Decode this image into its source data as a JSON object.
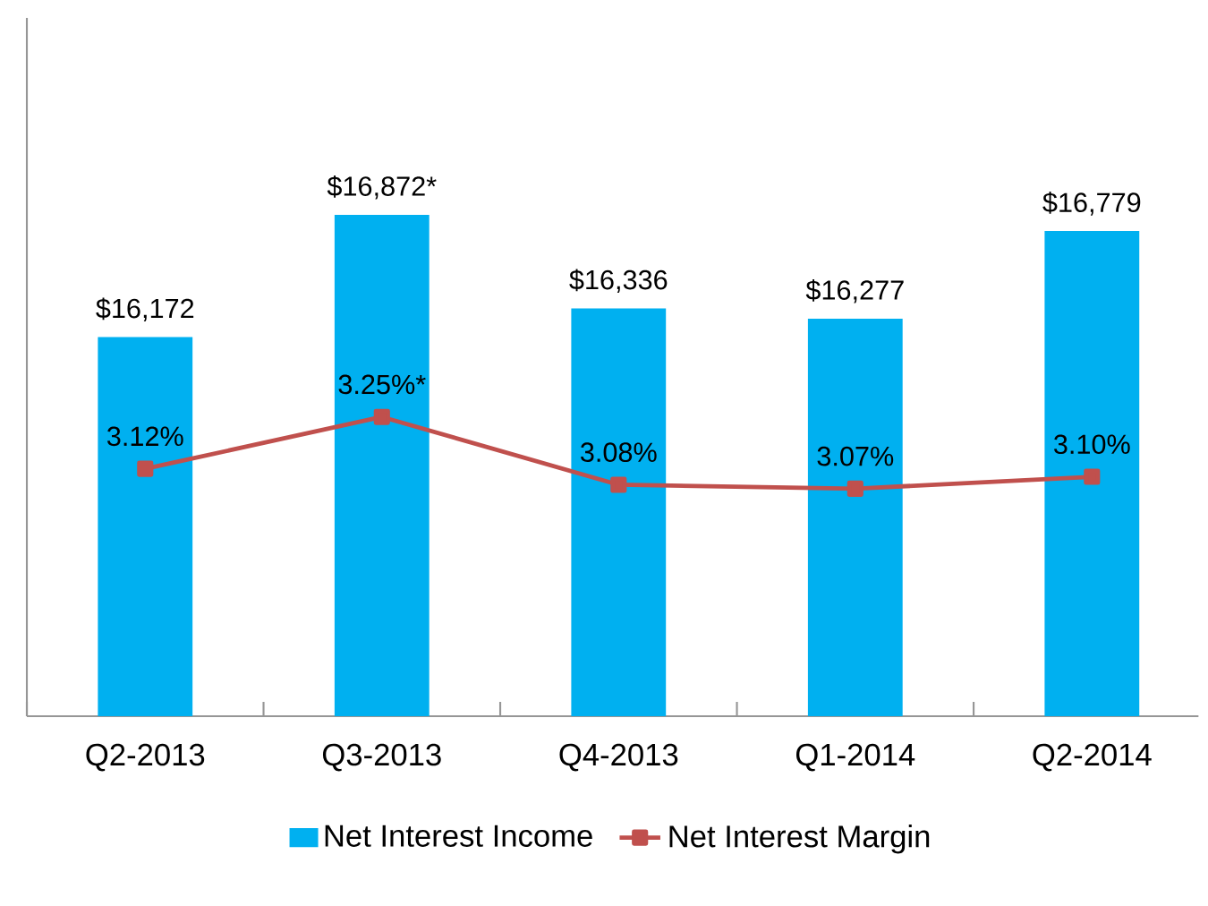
{
  "chart_data": {
    "type": "bar",
    "categories": [
      "Q2-2013",
      "Q3-2013",
      "Q4-2013",
      "Q1-2014",
      "Q2-2014"
    ],
    "series": [
      {
        "name": "Net Interest Income",
        "color": "#00b0f0",
        "values": [
          16172,
          16872,
          16336,
          16277,
          16779
        ],
        "value_labels": [
          "$16,172",
          "$16,872*",
          "$16,336",
          "$16,277",
          "$16,779"
        ]
      },
      {
        "name": "Net Interest Margin",
        "type": "line",
        "axis": "y2",
        "color": "#c0504d",
        "marker": "square",
        "values": [
          3.12,
          3.25,
          3.08,
          3.07,
          3.1
        ],
        "value_labels": [
          "3.12%",
          "3.25%*",
          "3.08%",
          "3.07%",
          "3.10%"
        ]
      }
    ],
    "ylim": [
      14000,
      18000
    ],
    "y2lim": [
      2.5,
      4.25
    ],
    "tick_labels": "x",
    "legend": "bottom"
  }
}
